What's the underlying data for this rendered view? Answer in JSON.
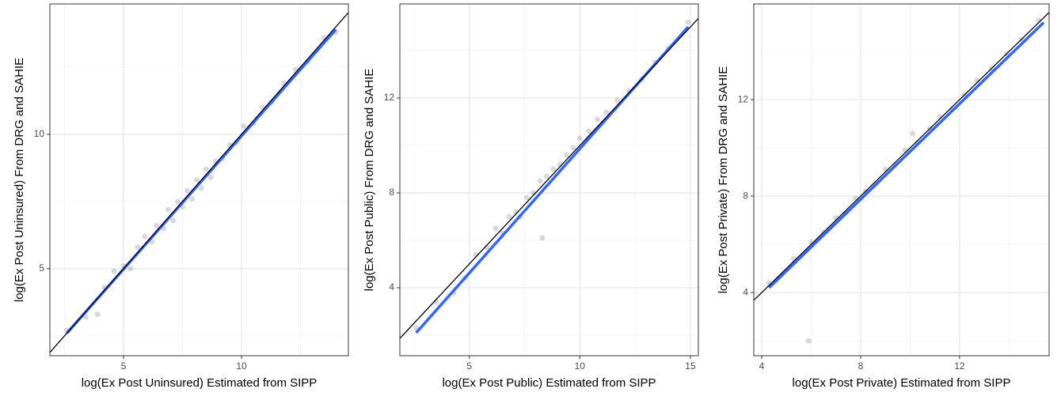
{
  "chart_data": [
    {
      "type": "scatter",
      "x_label": "log(Ex Post Uninsured) Estimated from SIPP",
      "y_label": "log(Ex Post Uninsured) From DRG and SAHIE",
      "xlim": [
        1.88,
        14.53
      ],
      "ylim": [
        1.76,
        14.85
      ],
      "xticks": [
        5,
        10
      ],
      "yticks": [
        5,
        10
      ],
      "minor_xticks": [
        2.5,
        7.5,
        12.5
      ],
      "minor_yticks": [
        2.5,
        7.5,
        12.5
      ],
      "grid": true,
      "point_color": "#000000",
      "point_opacity": 0.15,
      "x": [
        2.6,
        3.4,
        3.9,
        4.2,
        4.6,
        5.0,
        5.3,
        5.6,
        5.9,
        6.2,
        6.4,
        6.7,
        6.9,
        7.1,
        7.3,
        7.5,
        7.7,
        7.9,
        8.1,
        8.3,
        8.5,
        8.7,
        8.9,
        9.2,
        9.5,
        9.8,
        10.1,
        10.5,
        10.9,
        11.3,
        11.8,
        12.3,
        12.8,
        13.5,
        14.0
      ],
      "values": [
        2.7,
        3.2,
        3.3,
        4.3,
        4.9,
        5.1,
        5.0,
        5.8,
        6.2,
        6.0,
        6.6,
        6.5,
        7.2,
        6.8,
        7.5,
        7.3,
        7.9,
        7.6,
        8.3,
        8.0,
        8.7,
        8.4,
        9.0,
        9.1,
        9.6,
        9.7,
        10.3,
        10.4,
        11.0,
        11.2,
        11.9,
        12.4,
        12.7,
        13.6,
        13.8
      ],
      "fit_line": {
        "color": "#3366ff",
        "x": [
          2.6,
          14.0
        ],
        "values": [
          2.6,
          13.9
        ]
      },
      "reference_line": {
        "color": "#000000",
        "x": [
          1.76,
          14.53
        ],
        "values": [
          1.76,
          14.53
        ]
      }
    },
    {
      "type": "scatter",
      "x_label": "log(Ex Post Public) Estimated from SIPP",
      "y_label": "log(Ex Post Public) From DRG and SAHIE",
      "xlim": [
        1.86,
        15.36
      ],
      "ylim": [
        1.13,
        15.97
      ],
      "xticks": [
        5,
        10,
        15
      ],
      "yticks": [
        4,
        8,
        12
      ],
      "minor_xticks": [
        2.5,
        7.5,
        12.5
      ],
      "minor_yticks": [
        2,
        6,
        10,
        14
      ],
      "grid": true,
      "point_color": "#000000",
      "point_opacity": 0.15,
      "x": [
        2.6,
        3.5,
        4.3,
        4.8,
        5.3,
        5.8,
        6.2,
        6.5,
        6.8,
        7.1,
        7.3,
        7.6,
        7.9,
        8.2,
        8.3,
        8.5,
        8.8,
        9.1,
        9.4,
        9.7,
        10.0,
        10.4,
        10.8,
        11.2,
        11.7,
        12.2,
        12.8,
        13.4,
        14.0,
        14.9
      ],
      "values": [
        2.3,
        3.4,
        3.8,
        4.4,
        5.4,
        5.7,
        6.5,
        6.3,
        7.0,
        7.2,
        7.0,
        7.8,
        8.0,
        8.5,
        6.1,
        8.7,
        9.0,
        9.2,
        9.6,
        9.9,
        10.3,
        10.6,
        11.1,
        11.4,
        11.9,
        12.3,
        12.8,
        13.5,
        14.1,
        15.2
      ],
      "fit_line": {
        "color": "#3366ff",
        "x": [
          2.6,
          14.9
        ],
        "values": [
          2.1,
          15.0
        ]
      },
      "reference_line": {
        "color": "#000000",
        "x": [
          1.86,
          15.36
        ],
        "values": [
          1.86,
          15.36
        ]
      }
    },
    {
      "type": "scatter",
      "x_label": "log(Ex Post Private) Estimated from SIPP",
      "y_label": "log(Ex Post Private) From DRG and SAHIE",
      "xlim": [
        3.68,
        15.62
      ],
      "ylim": [
        1.38,
        15.97
      ],
      "xticks": [
        4,
        8,
        12
      ],
      "yticks": [
        4,
        8,
        12
      ],
      "minor_xticks": [
        6,
        10,
        14
      ],
      "minor_yticks": [
        2,
        6,
        10,
        14
      ],
      "grid": true,
      "point_color": "#000000",
      "point_opacity": 0.15,
      "x": [
        4.3,
        5.3,
        5.9,
        6.0,
        6.5,
        7.0,
        7.4,
        7.8,
        8.2,
        8.6,
        9.0,
        9.4,
        9.8,
        10.1,
        10.3,
        10.8,
        11.2,
        11.7,
        12.2,
        12.7,
        13.3,
        13.9,
        14.5,
        15.2
      ],
      "values": [
        4.4,
        5.4,
        2.0,
        6.1,
        6.5,
        7.1,
        7.3,
        7.9,
        8.2,
        8.5,
        9.1,
        9.3,
        9.9,
        10.6,
        10.2,
        10.8,
        11.3,
        11.6,
        12.2,
        12.8,
        13.3,
        13.9,
        14.5,
        15.3
      ],
      "fit_line": {
        "color": "#3366ff",
        "x": [
          4.3,
          15.4
        ],
        "values": [
          4.2,
          15.2
        ]
      },
      "reference_line": {
        "color": "#000000",
        "x": [
          3.68,
          15.62
        ],
        "values": [
          3.68,
          15.62
        ]
      }
    }
  ]
}
